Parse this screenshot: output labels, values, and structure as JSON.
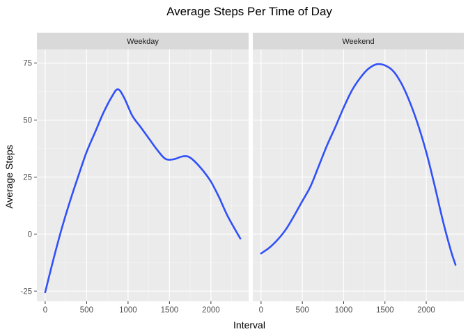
{
  "chart_data": {
    "type": "line",
    "title": "Average Steps Per Time of Day",
    "xlabel": "Interval",
    "ylabel": "Average Steps",
    "xlim": [
      -100,
      2455
    ],
    "ylim": [
      -29.5,
      81
    ],
    "x_ticks": [
      0,
      500,
      1000,
      1500,
      2000
    ],
    "y_ticks": [
      -25,
      0,
      25,
      50,
      75
    ],
    "grid": true,
    "panels": [
      {
        "label": "Weekday",
        "series": [
          {
            "color": "#3050f8",
            "x": [
              0,
              100,
              200,
              300,
              400,
              500,
              600,
              700,
              800,
              875,
              950,
              1050,
              1150,
              1250,
              1350,
              1450,
              1550,
              1650,
              1725,
              1800,
              1900,
              2000,
              2100,
              2200,
              2355
            ],
            "values": [
              -25.5,
              -11,
              2.5,
              14.5,
              25.5,
              36,
              44.5,
              53,
              60,
              63.5,
              60,
              52,
              47,
              42,
              37,
              33,
              32.8,
              34,
              34,
              32,
              28,
              23,
              16,
              8,
              -2
            ]
          }
        ]
      },
      {
        "label": "Weekend",
        "series": [
          {
            "color": "#3050f8",
            "x": [
              0,
              100,
              200,
              300,
              400,
              500,
              600,
              700,
              800,
              900,
              1000,
              1100,
              1200,
              1300,
              1400,
              1500,
              1600,
              1700,
              1800,
              1900,
              2000,
              2100,
              2200,
              2300,
              2355
            ],
            "values": [
              -8.5,
              -6,
              -2.5,
              2,
              8,
              14.5,
              21,
              30,
              39,
              47,
              55.5,
              63,
              68.5,
              72.5,
              74.5,
              74,
              71.5,
              66,
              58,
              48,
              36,
              21.5,
              6,
              -7.5,
              -13.5
            ]
          }
        ]
      }
    ]
  }
}
